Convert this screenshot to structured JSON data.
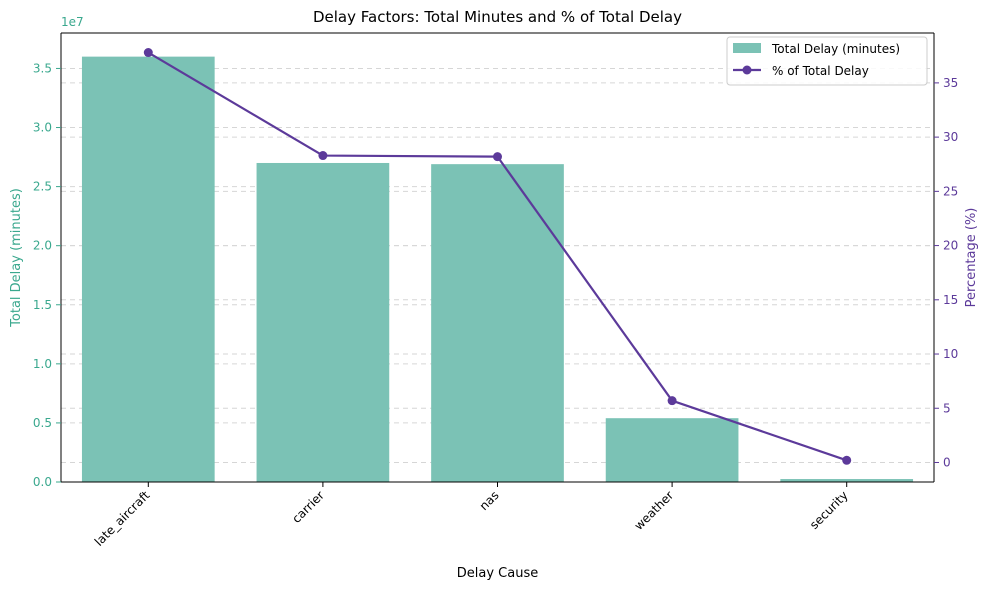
{
  "chart_data": {
    "type": "bar+line",
    "title": "Delay Factors: Total Minutes and % of Total Delay",
    "xlabel": "Delay Cause",
    "ylabel_left": "Total Delay (minutes)",
    "ylabel_right": "Percentage (%)",
    "left_offset_label": "1e7",
    "categories": [
      "late_aircraft",
      "carrier",
      "nas",
      "weather",
      "security"
    ],
    "series": [
      {
        "name": "Total Delay (minutes)",
        "type": "bar",
        "axis": "left",
        "values": [
          36000000,
          27000000,
          26900000,
          5400000,
          250000
        ]
      },
      {
        "name": "% of Total Delay",
        "type": "line",
        "axis": "right",
        "values": [
          37.8,
          28.3,
          28.2,
          5.7,
          0.2
        ]
      }
    ],
    "ylim_left": [
      0,
      38000000
    ],
    "ylim_right": [
      -1.8,
      39.6
    ],
    "yticks_left": [
      0,
      5000000,
      10000000,
      15000000,
      20000000,
      25000000,
      30000000,
      35000000
    ],
    "yticks_left_labels": [
      "0.0",
      "0.5",
      "1.0",
      "1.5",
      "2.0",
      "2.5",
      "3.0",
      "3.5"
    ],
    "yticks_right": [
      0,
      5,
      10,
      15,
      20,
      25,
      30,
      35
    ],
    "yticks_right_labels": [
      "0",
      "5",
      "10",
      "15",
      "20",
      "25",
      "30",
      "35"
    ],
    "grid": "y-dashed",
    "legend_position": "top-right",
    "colors": {
      "bar": "#7bc2b5",
      "line": "#5c3a9a",
      "left_axis": "#3aa88e",
      "right_axis": "#5c3a9a",
      "grid": "#d6d6d6"
    }
  }
}
